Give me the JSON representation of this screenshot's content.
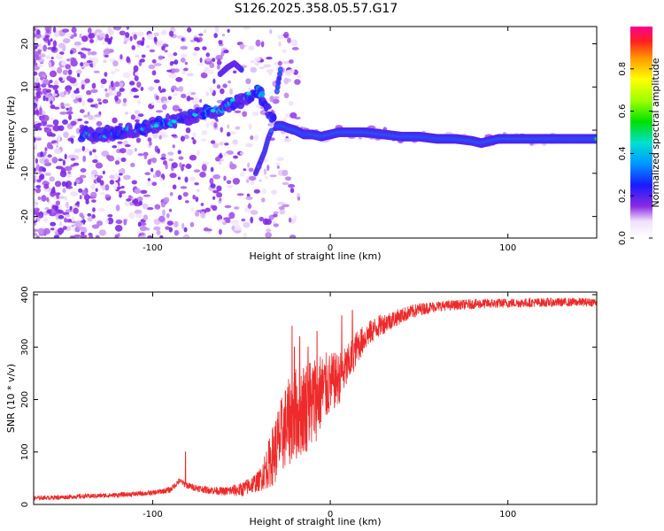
{
  "title": "S126.2025.358.05.57.G17",
  "chart_data": [
    {
      "type": "heatmap",
      "panel": "spectrogram",
      "xlabel": "Height of straight line (km)",
      "ylabel": "Frequency (Hz)",
      "xlim": [
        -167,
        150
      ],
      "ylim": [
        -25,
        24
      ],
      "xticks": [
        -100,
        0,
        100
      ],
      "xtick_labels": [
        "-100",
        "0",
        "100"
      ],
      "yticks": [
        -20,
        -10,
        0,
        10,
        20
      ],
      "ytick_labels": [
        "-20",
        "-10",
        "0",
        "10",
        "20"
      ],
      "colorbar": {
        "label": "Normalized spectral amplitude",
        "range": [
          0,
          1
        ],
        "ticks": [
          0.0,
          0.2,
          0.4,
          0.6,
          0.8
        ],
        "tick_labels": [
          "0.0",
          "0.2",
          "0.4",
          "0.6",
          "0.8"
        ],
        "colormap": "rainbow"
      },
      "ridge": {
        "x": [
          -140,
          -130,
          -120,
          -110,
          -100,
          -90,
          -80,
          -70,
          -60,
          -50,
          -44,
          -40,
          -37,
          -34,
          -32,
          -30,
          -27,
          -24,
          -20,
          -15,
          -10,
          -5,
          0,
          5,
          10,
          20,
          30,
          40,
          50,
          60,
          70,
          80,
          85,
          90,
          95,
          100,
          110,
          120,
          130,
          140,
          150
        ],
        "y": [
          -1,
          -1,
          -0.5,
          0,
          1,
          2,
          3,
          4,
          5,
          7,
          8,
          9,
          7,
          4,
          2,
          1,
          1,
          0.5,
          0,
          -1,
          -1,
          -1.5,
          -1,
          -0.5,
          -0.5,
          -0.5,
          -1,
          -1.5,
          -1.5,
          -2,
          -2,
          -2.5,
          -3,
          -2.5,
          -2,
          -2,
          -2,
          -2,
          -2,
          -2,
          -2
        ]
      },
      "branches": [
        {
          "x": [
            -62,
            -58,
            -54,
            -50
          ],
          "y": [
            13,
            14.5,
            15.5,
            14
          ]
        },
        {
          "x": [
            -42,
            -40,
            -37,
            -35,
            -33
          ],
          "y": [
            -10,
            -8,
            -5,
            -2,
            0
          ]
        },
        {
          "x": [
            -30,
            -28
          ],
          "y": [
            9,
            14
          ]
        }
      ]
    },
    {
      "type": "line",
      "panel": "snr",
      "xlabel": "Height of straight line (km)",
      "ylabel": "SNR (10 * v/v)",
      "xlim": [
        -167,
        150
      ],
      "ylim": [
        0,
        405
      ],
      "xticks": [
        -100,
        0,
        100
      ],
      "xtick_labels": [
        "-100",
        "0",
        "100"
      ],
      "yticks": [
        0,
        100,
        200,
        300,
        400
      ],
      "ytick_labels": [
        "0",
        "100",
        "200",
        "300",
        "400"
      ],
      "line_color": "#ee2a2a",
      "envelope": {
        "x": [
          -167,
          -150,
          -120,
          -100,
          -90,
          -85,
          -80,
          -70,
          -60,
          -50,
          -40,
          -35,
          -30,
          -25,
          -20,
          -15,
          -10,
          -5,
          0,
          5,
          10,
          15,
          20,
          25,
          30,
          40,
          50,
          60,
          80,
          100,
          120,
          150
        ],
        "y": [
          12,
          14,
          18,
          22,
          28,
          45,
          35,
          28,
          25,
          28,
          45,
          75,
          110,
          150,
          170,
          185,
          195,
          215,
          230,
          240,
          265,
          300,
          320,
          335,
          345,
          360,
          372,
          378,
          382,
          384,
          385,
          386
        ]
      },
      "noise": {
        "x": [
          -167,
          -100,
          -60,
          -40,
          -30,
          -20,
          -10,
          0,
          10,
          20,
          40,
          60,
          150
        ],
        "amp": [
          4,
          5,
          8,
          20,
          70,
          90,
          90,
          60,
          40,
          25,
          15,
          10,
          8
        ]
      },
      "spikes": [
        {
          "x": -81.5,
          "y": 100
        },
        {
          "x": -21.5,
          "y": 340
        },
        {
          "x": -20.2,
          "y": 300
        },
        {
          "x": -17.2,
          "y": 320
        },
        {
          "x": -12.5,
          "y": 300
        },
        {
          "x": -7.5,
          "y": 330
        },
        {
          "x": 6.5,
          "y": 360
        },
        {
          "x": 12.5,
          "y": 370
        }
      ]
    }
  ],
  "colors": {
    "background": "#ffffff",
    "axis": "#000000",
    "snr_line": "#ee2a2a"
  }
}
